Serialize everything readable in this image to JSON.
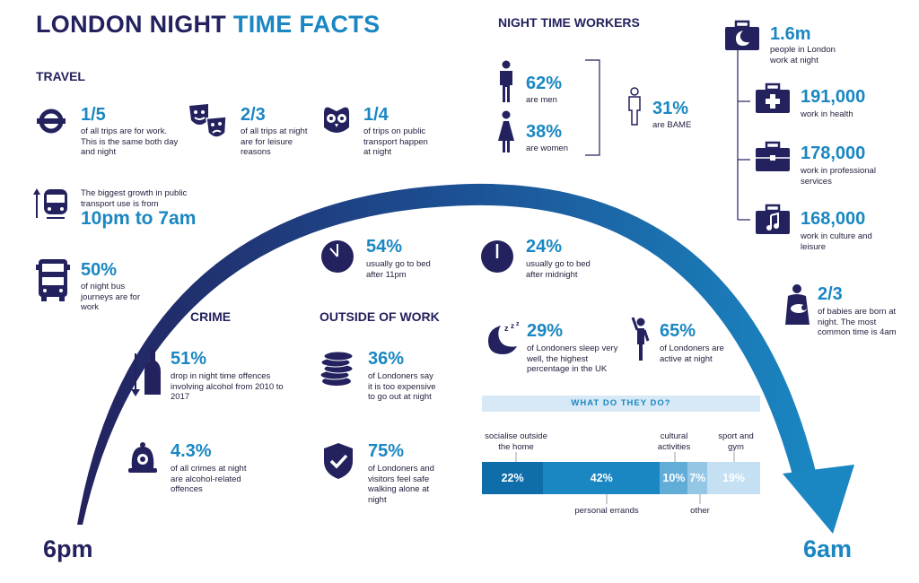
{
  "title": {
    "part1": "LONDON NIGHT",
    "part2": "TIME FACTS"
  },
  "colors": {
    "navy": "#23225e",
    "blue": "#1a87c2",
    "light": "#d7e9f6"
  },
  "travel": {
    "heading": "TRAVEL",
    "facts": [
      {
        "value": "1/5",
        "text": "of all trips are for work. This is the same both day and night",
        "icon": "underground-roundel-icon"
      },
      {
        "value": "2/3",
        "text": "of all trips at night are for leisure reasons",
        "icon": "theatre-masks-icon"
      },
      {
        "value": "1/4",
        "text": "of trips on public transport happen at night",
        "icon": "owl-icon"
      }
    ],
    "growth": {
      "text": "The biggest growth in public transport use is from",
      "value": "10pm to 7am",
      "icon": "train-icon"
    },
    "bus": {
      "value": "50%",
      "text": "of night bus journeys are for work",
      "icon": "bus-icon"
    }
  },
  "bed": [
    {
      "value": "54%",
      "text": "usually go to bed after 11pm",
      "icon": "clock-11-icon"
    },
    {
      "value": "24%",
      "text": "usually go to bed after midnight",
      "icon": "clock-12-icon"
    }
  ],
  "crime": {
    "heading": "CRIME",
    "facts": [
      {
        "value": "51%",
        "text": "drop in night time offences involving alcohol from 2010 to 2017",
        "icon": "bottle-icon"
      },
      {
        "value": "4.3%",
        "text": "of all crimes at night are alcohol-related offences",
        "icon": "police-helmet-icon"
      }
    ]
  },
  "outside_work": {
    "heading": "OUTSIDE OF WORK",
    "facts": [
      {
        "value": "36%",
        "text": "of Londoners say it is too expensive to go out at night",
        "icon": "coins-icon"
      },
      {
        "value": "75%",
        "text": "of Londoners and visitors feel safe walking alone at night",
        "icon": "shield-check-icon"
      }
    ]
  },
  "sleep": {
    "value": "29%",
    "text": "of Londoners sleep very well, the highest percentage in the UK",
    "icon": "moon-zzz-icon"
  },
  "active": {
    "value": "65%",
    "text": "of Londoners are active at night",
    "icon": "active-person-icon"
  },
  "workers": {
    "heading": "NIGHT TIME WORKERS",
    "men": {
      "value": "62%",
      "text": "are men"
    },
    "women": {
      "value": "38%",
      "text": "are women"
    },
    "bame": {
      "value": "31%",
      "text": "are BAME"
    }
  },
  "sectors": [
    {
      "value": "1.6m",
      "text": "people in London work at night",
      "icon": "briefcase-moon-icon"
    },
    {
      "value": "191,000",
      "text": "work in health",
      "icon": "medical-case-icon"
    },
    {
      "value": "178,000",
      "text": "work in professional services",
      "icon": "briefcase-icon"
    },
    {
      "value": "168,000",
      "text": "work in culture and leisure",
      "icon": "music-case-icon"
    }
  ],
  "babies": {
    "value": "2/3",
    "text": "of babies are born at night. The most common time is 4am",
    "icon": "mother-baby-icon"
  },
  "what_they_do": {
    "banner": "WHAT DO THEY DO?",
    "segments": [
      {
        "label": "socialise outside the home",
        "value": 22,
        "text": "22%",
        "color": "#0f6eaa"
      },
      {
        "label": "personal errands",
        "value": 42,
        "text": "42%",
        "color": "#1a87c2"
      },
      {
        "label": "cultural activities",
        "value": 10,
        "text": "10%",
        "color": "#62add8"
      },
      {
        "label": "other",
        "value": 7,
        "text": "7%",
        "color": "#94c7e6"
      },
      {
        "label": "sport and gym",
        "value": 19,
        "text": "19%",
        "color": "#c4e0f2"
      }
    ]
  },
  "times": {
    "start": "6pm",
    "end": "6am"
  }
}
